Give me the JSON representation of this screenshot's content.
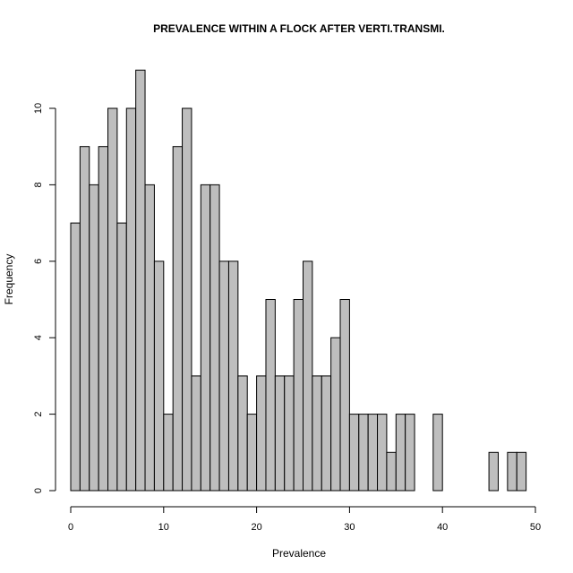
{
  "chart_data": {
    "type": "bar",
    "title": "PREVALENCE WITHIN A FLOCK AFTER VERTI.TRANSMI.",
    "xlabel": "Prevalence",
    "ylabel": "Frequency",
    "xlim": [
      0,
      50
    ],
    "ylim": [
      0,
      11
    ],
    "x_ticks": [
      0,
      10,
      20,
      30,
      40,
      50
    ],
    "y_ticks": [
      0,
      2,
      4,
      6,
      8,
      10
    ],
    "bin_width": 1,
    "bin_start": 0,
    "values": [
      7,
      9,
      8,
      9,
      10,
      7,
      10,
      11,
      8,
      6,
      2,
      9,
      10,
      3,
      8,
      8,
      6,
      6,
      3,
      2,
      3,
      5,
      3,
      3,
      5,
      6,
      3,
      3,
      4,
      5,
      2,
      2,
      2,
      2,
      1,
      2,
      2,
      0,
      0,
      2,
      0,
      0,
      0,
      0,
      0,
      1,
      0,
      1,
      1
    ],
    "bar_color": "#bebebe",
    "grid": false,
    "legend": "none"
  }
}
